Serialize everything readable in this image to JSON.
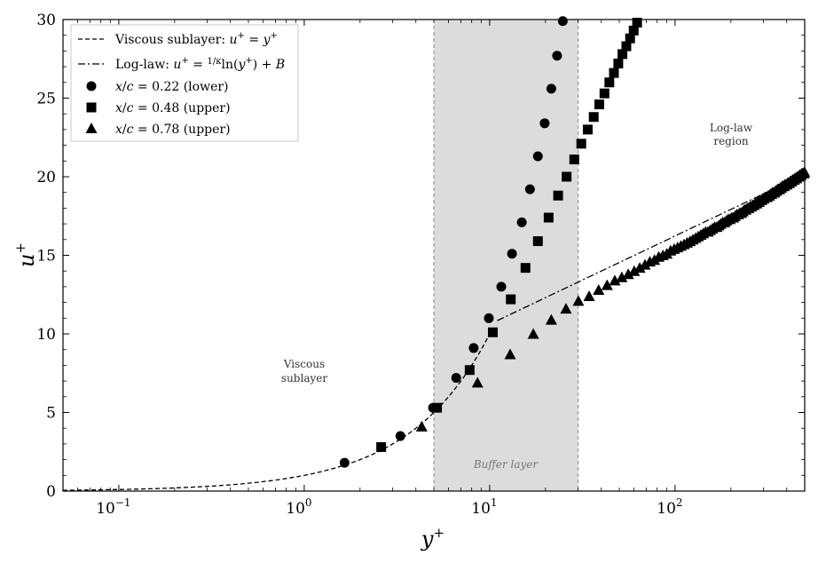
{
  "chart_data": {
    "type": "scatter",
    "xscale": "log",
    "xlim": [
      0.05,
      500
    ],
    "ylim": [
      0,
      30
    ],
    "xlabel": "y⁺",
    "ylabel": "u⁺",
    "x_ticks": [
      {
        "value": 0.1,
        "base": "10",
        "exp": "−1"
      },
      {
        "value": 1,
        "base": "10",
        "exp": "0"
      },
      {
        "value": 10,
        "base": "10",
        "exp": "1"
      },
      {
        "value": 100,
        "base": "10",
        "exp": "2"
      }
    ],
    "y_ticks": [
      "0",
      "5",
      "10",
      "15",
      "20",
      "25",
      "30"
    ],
    "buffer_region": {
      "x0": 5,
      "x1": 30,
      "color": "#dcdcdc"
    },
    "annotations": {
      "viscous": [
        "Viscous",
        "sublayer"
      ],
      "loglaw": [
        "Log-law",
        "region"
      ],
      "buffer": "Buffer layer"
    },
    "legend": {
      "position": "upper-left",
      "entries": [
        {
          "marker": "dashed-line",
          "text": "Viscous sublayer: u⁺ = y⁺"
        },
        {
          "marker": "dashdot-line",
          "text": "Log-law: u⁺ = (1/κ)ln(y⁺) + B"
        },
        {
          "marker": "circle",
          "text": "x/c = 0.22 (lower)"
        },
        {
          "marker": "square",
          "text": "x/c = 0.48 (upper)"
        },
        {
          "marker": "triangle",
          "text": "x/c = 0.78 (upper)"
        }
      ]
    },
    "lines": [
      {
        "name": "Viscous sublayer: u⁺ = y⁺",
        "style": "dashed",
        "x_range": [
          0.05,
          10
        ]
      },
      {
        "name": "Log-law: u⁺ = (1/κ)ln(y⁺) + B",
        "style": "dashdot",
        "x_range": [
          11,
          450
        ],
        "kappa": 0.41,
        "B": 5.0
      }
    ],
    "series": [
      {
        "name": "x/c = 0.22 (lower)",
        "marker": "circle",
        "x": [
          1.65,
          3.3,
          4.95,
          6.6,
          8.2,
          9.9,
          11.55,
          13.2,
          14.9,
          16.5,
          18.2,
          19.8,
          21.5,
          23.1,
          24.8
        ],
        "y": [
          1.8,
          3.5,
          5.3,
          7.2,
          9.1,
          11.0,
          13.0,
          15.1,
          17.1,
          19.2,
          21.3,
          23.4,
          25.6,
          27.7,
          29.9
        ]
      },
      {
        "name": "x/c = 0.48 (upper)",
        "marker": "square",
        "x": [
          2.6,
          5.2,
          7.8,
          10.4,
          13.0,
          15.6,
          18.2,
          20.8,
          23.4,
          26.0,
          28.6,
          31.2,
          33.8,
          36.4,
          39.0,
          41.6,
          44.2,
          46.8,
          49.4,
          52.0,
          54.6,
          57.2,
          59.8,
          62.4,
          65.0
        ],
        "y": [
          2.8,
          5.3,
          7.7,
          10.1,
          12.2,
          14.2,
          15.9,
          17.4,
          18.8,
          20.0,
          21.1,
          22.1,
          23.0,
          23.8,
          24.6,
          25.3,
          26.0,
          26.6,
          27.2,
          27.8,
          28.3,
          28.8,
          29.3,
          29.8,
          30.2
        ]
      },
      {
        "name": "x/c = 0.78 (upper)",
        "marker": "triangle",
        "x": [
          4.3,
          8.6,
          12.9,
          17.2,
          21.5,
          25.8,
          30.1,
          34.4,
          38.7,
          43.0,
          47.3,
          51.6,
          55.9,
          60.2,
          64.5,
          68.8,
          73.1,
          77.4,
          81.7,
          86.0,
          90.3,
          94.6,
          98.9,
          103.2,
          107.5,
          111.8,
          116.1,
          120.4,
          124.7,
          129.0,
          133.3,
          137.6,
          141.9,
          146.2,
          150.5,
          154.8,
          159.1,
          163.4,
          167.7,
          172.0,
          176.3,
          180.6,
          184.9,
          189.2,
          193.5,
          197.8,
          202.1,
          206.4,
          210.7,
          215.0,
          219.3,
          223.6,
          227.9,
          232.2,
          236.5,
          240.8,
          245.1,
          249.4,
          253.7,
          258.0,
          262.3,
          266.6,
          270.9,
          275.2,
          279.5,
          283.8,
          288.1,
          292.4,
          296.7,
          301.0,
          305.3,
          309.6,
          313.9,
          318.2,
          322.5,
          326.8,
          331.1,
          335.4,
          339.7,
          344.0,
          348.3,
          352.6,
          356.9,
          361.2,
          365.5,
          369.8,
          374.1,
          378.4,
          382.7,
          387.0,
          391.3,
          395.6,
          399.9,
          404.2,
          408.5,
          412.8,
          417.1,
          421.4,
          425.7,
          430.0,
          434.3,
          438.6,
          442.9,
          447.2,
          451.5,
          455.8,
          460.1,
          464.4,
          468.7,
          473.0,
          477.3,
          481.6,
          485.9,
          490.2,
          494.5,
          498.8
        ],
        "y": [
          4.1,
          6.9,
          8.7,
          10.0,
          10.9,
          11.6,
          12.1,
          12.4,
          12.8,
          13.1,
          13.4,
          13.6,
          13.8,
          14.0,
          14.2,
          14.4,
          14.6,
          14.7,
          14.9,
          15.0,
          15.1,
          15.3,
          15.4,
          15.5,
          15.6,
          15.7,
          15.8,
          15.9,
          16.0,
          16.1,
          16.2,
          16.3,
          16.4,
          16.5,
          16.5,
          16.6,
          16.7,
          16.8,
          16.8,
          16.9,
          17.0,
          17.1,
          17.1,
          17.2,
          17.3,
          17.3,
          17.4,
          17.4,
          17.5,
          17.6,
          17.6,
          17.7,
          17.7,
          17.8,
          17.9,
          17.9,
          18.0,
          18.0,
          18.1,
          18.1,
          18.2,
          18.2,
          18.3,
          18.3,
          18.4,
          18.4,
          18.5,
          18.5,
          18.6,
          18.6,
          18.7,
          18.7,
          18.7,
          18.8,
          18.8,
          18.9,
          18.9,
          19.0,
          19.0,
          19.0,
          19.1,
          19.1,
          19.2,
          19.2,
          19.2,
          19.3,
          19.3,
          19.4,
          19.4,
          19.4,
          19.5,
          19.5,
          19.5,
          19.6,
          19.6,
          19.6,
          19.7,
          19.7,
          19.7,
          19.8,
          19.8,
          19.8,
          19.9,
          19.9,
          19.9,
          20.0,
          20.0,
          20.0,
          20.1,
          20.1,
          20.1,
          20.2,
          20.2,
          20.2,
          20.2,
          20.3
        ]
      }
    ]
  }
}
